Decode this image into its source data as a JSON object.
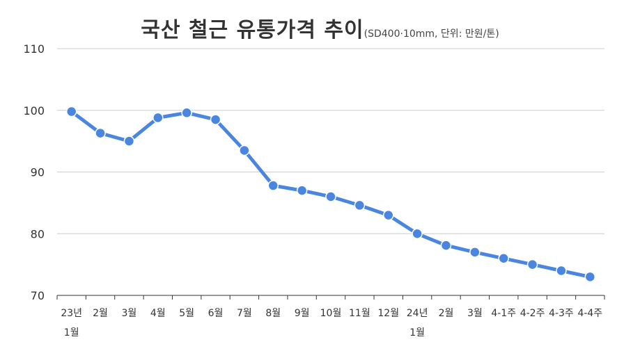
{
  "chart_data": {
    "type": "line",
    "title": "국산 철근 유통가격 추이",
    "subtitle": "(SD400·10mm, 단위: 만원/톤)",
    "xlabel": "",
    "ylabel": "",
    "categories": [
      [
        "23년",
        "1월"
      ],
      [
        "2월"
      ],
      [
        "3월"
      ],
      [
        "4월"
      ],
      [
        "5월"
      ],
      [
        "6월"
      ],
      [
        "7월"
      ],
      [
        "8월"
      ],
      [
        "9월"
      ],
      [
        "10월"
      ],
      [
        "11월"
      ],
      [
        "12월"
      ],
      [
        "24년",
        "1월"
      ],
      [
        "2월"
      ],
      [
        "3월"
      ],
      [
        "4-1주"
      ],
      [
        "4-2주"
      ],
      [
        "4-3주"
      ],
      [
        "4-4주"
      ]
    ],
    "values": [
      99.8,
      96.3,
      95.0,
      98.8,
      99.6,
      98.5,
      93.5,
      87.8,
      87.0,
      86.0,
      84.6,
      83.0,
      80.0,
      78.1,
      77.0,
      76.0,
      75.0,
      74.0,
      73.0
    ],
    "ylim": [
      70,
      110
    ],
    "yticks": [
      70,
      80,
      90,
      100,
      110
    ],
    "grid": true,
    "legend": "none",
    "colors": {
      "line": "#4a86e0",
      "grid": "#cccccc",
      "axis": "#333333"
    }
  }
}
